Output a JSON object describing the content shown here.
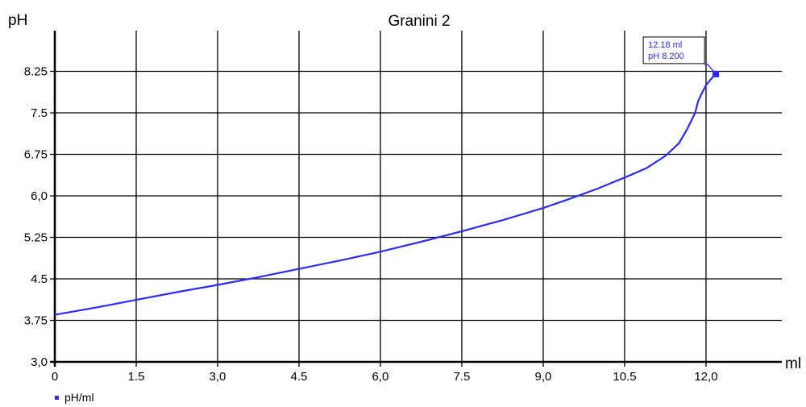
{
  "chart_data": {
    "type": "line",
    "title": "Granini 2",
    "xlabel": "ml",
    "ylabel": "pH",
    "xlim": [
      0,
      13.5
    ],
    "ylim": [
      3.0,
      8.85
    ],
    "x_ticks": [
      0,
      1.5,
      3.0,
      4.5,
      6.0,
      7.5,
      9.0,
      10.5,
      12.0
    ],
    "x_tick_labels": [
      "0",
      "1.5",
      "3,0",
      "4.5",
      "6,0",
      "7.5",
      "9,0",
      "10.5",
      "12,0"
    ],
    "y_ticks": [
      3.0,
      3.75,
      4.5,
      5.25,
      6.0,
      6.75,
      7.5,
      8.25
    ],
    "y_tick_labels": [
      "3,0",
      "3.75",
      "4.5",
      "5.25",
      "6,0",
      "6.75",
      "7.5",
      "8.25"
    ],
    "grid": true,
    "legend_position": "bottom-left",
    "series": [
      {
        "name": "pH/ml",
        "color": "#2a2aff",
        "x": [
          0,
          0.75,
          1.5,
          2.25,
          3.0,
          3.75,
          4.5,
          5.25,
          6.0,
          6.75,
          7.5,
          8.25,
          9.0,
          9.5,
          10.0,
          10.5,
          10.9,
          11.25,
          11.5,
          11.65,
          11.75,
          11.8,
          11.85,
          11.92,
          12.0,
          12.1,
          12.18
        ],
        "y": [
          3.85,
          3.98,
          4.12,
          4.26,
          4.39,
          4.53,
          4.68,
          4.83,
          4.99,
          5.17,
          5.36,
          5.56,
          5.78,
          5.95,
          6.13,
          6.33,
          6.5,
          6.72,
          6.95,
          7.2,
          7.4,
          7.5,
          7.7,
          7.85,
          8.0,
          8.12,
          8.2
        ]
      }
    ],
    "annotation": {
      "x": 12.18,
      "y": 8.2,
      "line1": "12.18 ml",
      "line2": "pH 8.200"
    }
  }
}
